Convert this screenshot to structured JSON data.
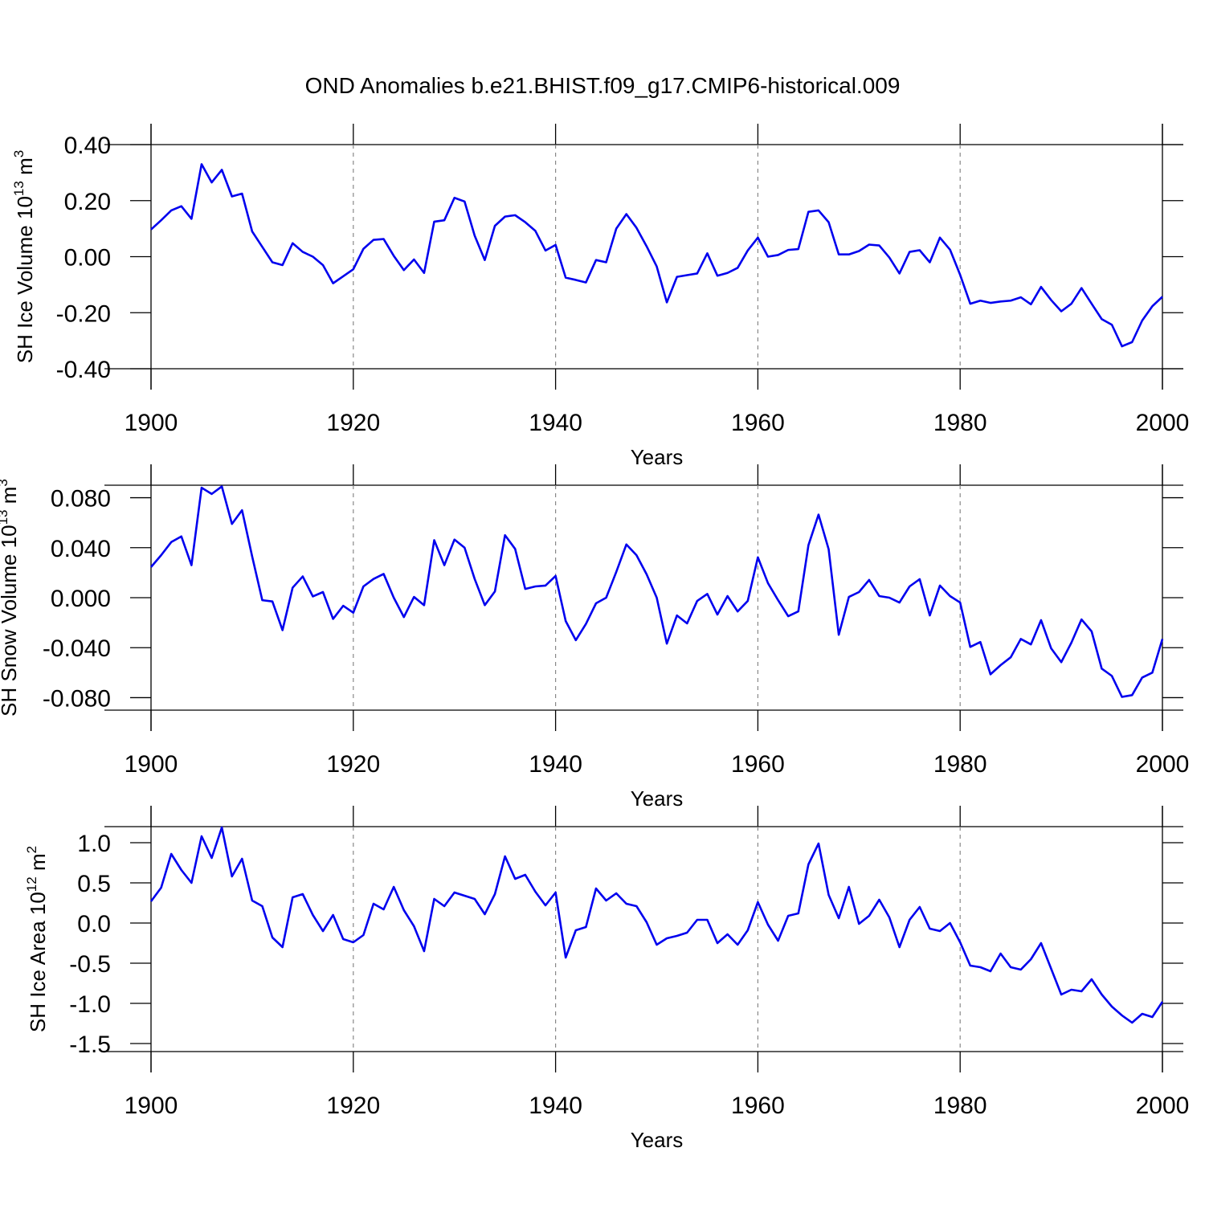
{
  "chart_data": [
    {
      "type": "line",
      "title": "OND Anomalies b.e21.BHIST.f09_g17.CMIP6-historical.009",
      "xlabel": "Years",
      "ylabel": {
        "text": "SH Ice Volume 10",
        "exponent": "13",
        "unit": " m",
        "unit_power": "3"
      },
      "color": "#0000ee",
      "grid": true,
      "xlim": [
        1900,
        2000
      ],
      "xticks": [
        1900,
        1920,
        1940,
        1960,
        1980,
        2000
      ],
      "ylim": [
        -0.4,
        0.4
      ],
      "yticks": [
        {
          "value": 0.4,
          "label": "0.40"
        },
        {
          "value": 0.2,
          "label": "0.20"
        },
        {
          "value": 0,
          "label": "0.00"
        },
        {
          "value": -0.2,
          "label": "-0.20"
        },
        {
          "value": -0.4,
          "label": "-0.40"
        }
      ],
      "x": [
        1900,
        1901,
        1902,
        1903,
        1904,
        1905,
        1906,
        1907,
        1908,
        1909,
        1910,
        1911,
        1912,
        1913,
        1914,
        1915,
        1916,
        1917,
        1918,
        1919,
        1920,
        1921,
        1922,
        1923,
        1924,
        1925,
        1926,
        1927,
        1928,
        1929,
        1930,
        1931,
        1932,
        1933,
        1934,
        1935,
        1936,
        1937,
        1938,
        1939,
        1940,
        1941,
        1942,
        1943,
        1944,
        1945,
        1946,
        1947,
        1948,
        1949,
        1950,
        1951,
        1952,
        1953,
        1954,
        1955,
        1956,
        1957,
        1958,
        1959,
        1960,
        1961,
        1962,
        1963,
        1964,
        1965,
        1966,
        1967,
        1968,
        1969,
        1970,
        1971,
        1972,
        1973,
        1974,
        1975,
        1976,
        1977,
        1978,
        1979,
        1980,
        1981,
        1982,
        1983,
        1984,
        1985,
        1986,
        1987,
        1988,
        1989,
        1990,
        1991,
        1992,
        1993,
        1994,
        1995,
        1996,
        1997,
        1998,
        1999,
        2000
      ],
      "values": [
        0.097,
        0.13,
        0.165,
        0.18,
        0.135,
        0.33,
        0.265,
        0.31,
        0.215,
        0.225,
        0.09,
        0.035,
        -0.02,
        -0.03,
        0.048,
        0.017,
        0.0,
        -0.03,
        -0.095,
        -0.07,
        -0.045,
        0.028,
        0.06,
        0.063,
        0.003,
        -0.048,
        -0.01,
        -0.058,
        0.125,
        0.13,
        0.21,
        0.197,
        0.075,
        -0.012,
        0.11,
        0.143,
        0.148,
        0.123,
        0.092,
        0.022,
        0.042,
        -0.075,
        -0.083,
        -0.092,
        -0.012,
        -0.02,
        0.1,
        0.152,
        0.103,
        0.037,
        -0.035,
        -0.163,
        -0.072,
        -0.066,
        -0.06,
        0.012,
        -0.068,
        -0.058,
        -0.04,
        0.022,
        0.068,
        0.0,
        0.006,
        0.024,
        0.027,
        0.16,
        0.165,
        0.123,
        0.008,
        0.008,
        0.02,
        0.043,
        0.04,
        -0.003,
        -0.06,
        0.017,
        0.023,
        -0.02,
        0.068,
        0.025,
        -0.065,
        -0.168,
        -0.157,
        -0.165,
        -0.16,
        -0.157,
        -0.145,
        -0.17,
        -0.108,
        -0.155,
        -0.195,
        -0.168,
        -0.112,
        -0.168,
        -0.223,
        -0.243,
        -0.32,
        -0.305,
        -0.228,
        -0.177,
        -0.143
      ]
    },
    {
      "type": "line",
      "xlabel": "Years",
      "ylabel": {
        "text": "SH Snow Volume 10",
        "exponent": "13",
        "unit": " m",
        "unit_power": "3"
      },
      "color": "#0000ee",
      "grid": true,
      "xlim": [
        1900,
        2000
      ],
      "xticks": [
        1900,
        1920,
        1940,
        1960,
        1980,
        2000
      ],
      "ylim": [
        -0.09,
        0.09
      ],
      "yticks": [
        {
          "value": 0.08,
          "label": "0.080"
        },
        {
          "value": 0.04,
          "label": "0.040"
        },
        {
          "value": 0,
          "label": "0.000"
        },
        {
          "value": -0.04,
          "label": "-0.040"
        },
        {
          "value": -0.08,
          "label": "-0.080"
        }
      ],
      "x": [
        1900,
        1901,
        1902,
        1903,
        1904,
        1905,
        1906,
        1907,
        1908,
        1909,
        1910,
        1911,
        1912,
        1913,
        1914,
        1915,
        1916,
        1917,
        1918,
        1919,
        1920,
        1921,
        1922,
        1923,
        1924,
        1925,
        1926,
        1927,
        1928,
        1929,
        1930,
        1931,
        1932,
        1933,
        1934,
        1935,
        1936,
        1937,
        1938,
        1939,
        1940,
        1941,
        1942,
        1943,
        1944,
        1945,
        1946,
        1947,
        1948,
        1949,
        1950,
        1951,
        1952,
        1953,
        1954,
        1955,
        1956,
        1957,
        1958,
        1959,
        1960,
        1961,
        1962,
        1963,
        1964,
        1965,
        1966,
        1967,
        1968,
        1969,
        1970,
        1971,
        1972,
        1973,
        1974,
        1975,
        1976,
        1977,
        1978,
        1979,
        1980,
        1981,
        1982,
        1983,
        1984,
        1985,
        1986,
        1987,
        1988,
        1989,
        1990,
        1991,
        1992,
        1993,
        1994,
        1995,
        1996,
        1997,
        1998,
        1999,
        2000
      ],
      "values": [
        0.0245,
        0.034,
        0.0445,
        0.049,
        0.026,
        0.088,
        0.083,
        0.089,
        0.059,
        0.07,
        0.033,
        -0.002,
        -0.003,
        -0.026,
        0.008,
        0.017,
        0.001,
        0.0045,
        -0.017,
        -0.0065,
        -0.012,
        0.009,
        0.015,
        0.019,
        0.0,
        -0.0155,
        0.0006,
        -0.006,
        0.046,
        0.026,
        0.0465,
        0.04,
        0.015,
        -0.006,
        0.005,
        0.05,
        0.039,
        0.007,
        0.009,
        0.0097,
        0.0174,
        -0.0187,
        -0.034,
        -0.021,
        -0.0045,
        0.0,
        0.0206,
        0.0426,
        0.034,
        0.0187,
        0.0,
        -0.0368,
        -0.0142,
        -0.0206,
        -0.0026,
        0.003,
        -0.0135,
        0.0013,
        -0.011,
        -0.0026,
        0.0323,
        0.0116,
        -0.002,
        -0.0148,
        -0.011,
        0.042,
        0.0665,
        0.0387,
        -0.0297,
        0.0006,
        0.0045,
        0.0142,
        0.0013,
        0.0,
        -0.0039,
        0.009,
        0.0148,
        -0.0142,
        0.0097,
        0.0013,
        -0.0039,
        -0.0394,
        -0.0355,
        -0.0613,
        -0.054,
        -0.0477,
        -0.033,
        -0.0374,
        -0.018,
        -0.0406,
        -0.0516,
        -0.036,
        -0.0174,
        -0.027,
        -0.0568,
        -0.0626,
        -0.0794,
        -0.078,
        -0.0639,
        -0.06,
        -0.033
      ]
    },
    {
      "type": "line",
      "xlabel": "Years",
      "ylabel": {
        "text": "SH Ice Area 10",
        "exponent": "12",
        "unit": " m",
        "unit_power": "2"
      },
      "color": "#0000ee",
      "grid": true,
      "xlim": [
        1900,
        2000
      ],
      "xticks": [
        1900,
        1920,
        1940,
        1960,
        1980,
        2000
      ],
      "ylim": [
        -1.6,
        1.2
      ],
      "yticks": [
        {
          "value": 1,
          "label": "1.0"
        },
        {
          "value": 0.5,
          "label": "0.5"
        },
        {
          "value": 0,
          "label": "0.0"
        },
        {
          "value": -0.5,
          "label": "-0.5"
        },
        {
          "value": -1,
          "label": "-1.0"
        },
        {
          "value": -1.5,
          "label": "-1.5"
        }
      ],
      "x": [
        1900,
        1901,
        1902,
        1903,
        1904,
        1905,
        1906,
        1907,
        1908,
        1909,
        1910,
        1911,
        1912,
        1913,
        1914,
        1915,
        1916,
        1917,
        1918,
        1919,
        1920,
        1921,
        1922,
        1923,
        1924,
        1925,
        1926,
        1927,
        1928,
        1929,
        1930,
        1931,
        1932,
        1933,
        1934,
        1935,
        1936,
        1937,
        1938,
        1939,
        1940,
        1941,
        1942,
        1943,
        1944,
        1945,
        1946,
        1947,
        1948,
        1949,
        1950,
        1951,
        1952,
        1953,
        1954,
        1955,
        1956,
        1957,
        1958,
        1959,
        1960,
        1961,
        1962,
        1963,
        1964,
        1965,
        1966,
        1967,
        1968,
        1969,
        1970,
        1971,
        1972,
        1973,
        1974,
        1975,
        1976,
        1977,
        1978,
        1979,
        1980,
        1981,
        1982,
        1983,
        1984,
        1985,
        1986,
        1987,
        1988,
        1989,
        1990,
        1991,
        1992,
        1993,
        1994,
        1995,
        1996,
        1997,
        1998,
        1999,
        2000
      ],
      "values": [
        0.27,
        0.44,
        0.86,
        0.66,
        0.5,
        1.08,
        0.81,
        1.19,
        0.58,
        0.8,
        0.28,
        0.21,
        -0.18,
        -0.3,
        0.32,
        0.36,
        0.1,
        -0.1,
        0.1,
        -0.2,
        -0.24,
        -0.15,
        0.24,
        0.17,
        0.45,
        0.16,
        -0.04,
        -0.35,
        0.3,
        0.21,
        0.38,
        0.34,
        0.3,
        0.11,
        0.36,
        0.83,
        0.55,
        0.6,
        0.39,
        0.22,
        0.38,
        -0.43,
        -0.09,
        -0.05,
        0.43,
        0.28,
        0.37,
        0.24,
        0.21,
        0.01,
        -0.27,
        -0.19,
        -0.16,
        -0.12,
        0.04,
        0.04,
        -0.25,
        -0.14,
        -0.27,
        -0.09,
        0.26,
        -0.02,
        -0.22,
        0.09,
        0.12,
        0.73,
        0.99,
        0.35,
        0.06,
        0.45,
        -0.01,
        0.09,
        0.29,
        0.07,
        -0.3,
        0.04,
        0.2,
        -0.07,
        -0.1,
        0.0,
        -0.24,
        -0.53,
        -0.55,
        -0.6,
        -0.38,
        -0.55,
        -0.58,
        -0.45,
        -0.25,
        -0.57,
        -0.89,
        -0.83,
        -0.85,
        -0.7,
        -0.89,
        -1.04,
        -1.15,
        -1.24,
        -1.13,
        -1.17,
        -0.98
      ]
    }
  ]
}
